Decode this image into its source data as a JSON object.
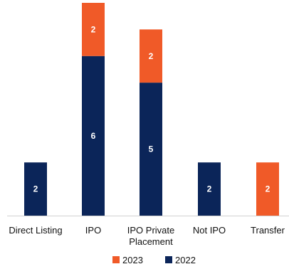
{
  "chart_data": {
    "type": "bar",
    "stacked": true,
    "categories": [
      "Direct Listing",
      "IPO",
      "IPO Private Placement",
      "Not IPO",
      "Transfer"
    ],
    "category_label_lines": [
      [
        "Direct Listing"
      ],
      [
        "IPO"
      ],
      [
        "IPO Private",
        "Placement"
      ],
      [
        "Not IPO"
      ],
      [
        "Transfer"
      ]
    ],
    "series": [
      {
        "name": "2022",
        "color": "#0b2559",
        "values": [
          2,
          6,
          5,
          2,
          0
        ]
      },
      {
        "name": "2023",
        "color": "#f05a28",
        "values": [
          0,
          2,
          2,
          0,
          2
        ]
      }
    ],
    "legend_order": [
      "2023",
      "2022"
    ],
    "legend_position": "bottom",
    "ylim": [
      0,
      8
    ],
    "grid": false,
    "data_labels": true,
    "title": "",
    "xlabel": "",
    "ylabel": ""
  }
}
